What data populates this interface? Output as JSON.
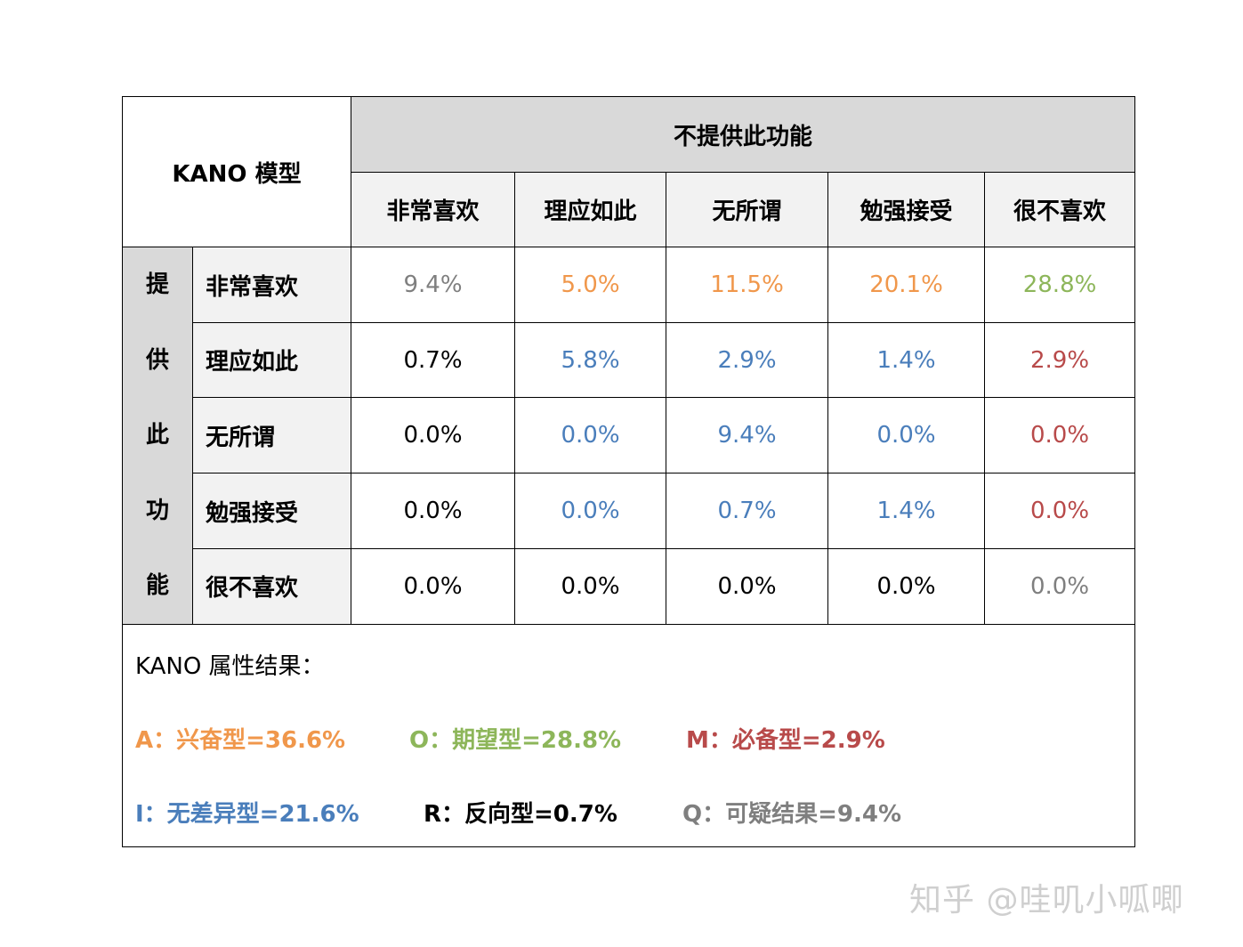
{
  "table": {
    "corner_title": "KANO 模型",
    "col_group_header": "不提供此功能",
    "row_group_header": [
      "提",
      "供",
      "此",
      "功",
      "能"
    ],
    "columns": [
      "非常喜欢",
      "理应如此",
      "无所谓",
      "勉强接受",
      "很不喜欢"
    ],
    "rows": [
      {
        "label": "非常喜欢",
        "cells": [
          {
            "value": "9.4%",
            "color": "#7f7f7f"
          },
          {
            "value": "5.0%",
            "color": "#f0974b"
          },
          {
            "value": "11.5%",
            "color": "#f0974b"
          },
          {
            "value": "20.1%",
            "color": "#f0974b"
          },
          {
            "value": "28.8%",
            "color": "#8db65a"
          }
        ]
      },
      {
        "label": "理应如此",
        "cells": [
          {
            "value": "0.7%",
            "color": "#000000"
          },
          {
            "value": "5.8%",
            "color": "#4a7ebb"
          },
          {
            "value": "2.9%",
            "color": "#4a7ebb"
          },
          {
            "value": "1.4%",
            "color": "#4a7ebb"
          },
          {
            "value": "2.9%",
            "color": "#b84a4a"
          }
        ]
      },
      {
        "label": "无所谓",
        "cells": [
          {
            "value": "0.0%",
            "color": "#000000"
          },
          {
            "value": "0.0%",
            "color": "#4a7ebb"
          },
          {
            "value": "9.4%",
            "color": "#4a7ebb"
          },
          {
            "value": "0.0%",
            "color": "#4a7ebb"
          },
          {
            "value": "0.0%",
            "color": "#b84a4a"
          }
        ]
      },
      {
        "label": "勉强接受",
        "cells": [
          {
            "value": "0.0%",
            "color": "#000000"
          },
          {
            "value": "0.0%",
            "color": "#4a7ebb"
          },
          {
            "value": "0.7%",
            "color": "#4a7ebb"
          },
          {
            "value": "1.4%",
            "color": "#4a7ebb"
          },
          {
            "value": "0.0%",
            "color": "#b84a4a"
          }
        ]
      },
      {
        "label": "很不喜欢",
        "cells": [
          {
            "value": "0.0%",
            "color": "#000000"
          },
          {
            "value": "0.0%",
            "color": "#000000"
          },
          {
            "value": "0.0%",
            "color": "#000000"
          },
          {
            "value": "0.0%",
            "color": "#000000"
          },
          {
            "value": "0.0%",
            "color": "#7f7f7f"
          }
        ]
      }
    ]
  },
  "results": {
    "title": "KANO 属性结果：",
    "items": [
      {
        "text": "A：兴奋型=36.6%",
        "color": "#f0974b"
      },
      {
        "text": "O：期望型=28.8%",
        "color": "#8db65a"
      },
      {
        "text": "M：必备型=2.9%",
        "color": "#b84a4a"
      },
      {
        "text": "I：无差异型=21.6%",
        "color": "#4a7ebb"
      },
      {
        "text": "R：反向型=0.7%",
        "color": "#000000"
      },
      {
        "text": "Q：可疑结果=9.4%",
        "color": "#7f7f7f"
      }
    ]
  },
  "watermark": "知乎 @哇叽小呱唧"
}
